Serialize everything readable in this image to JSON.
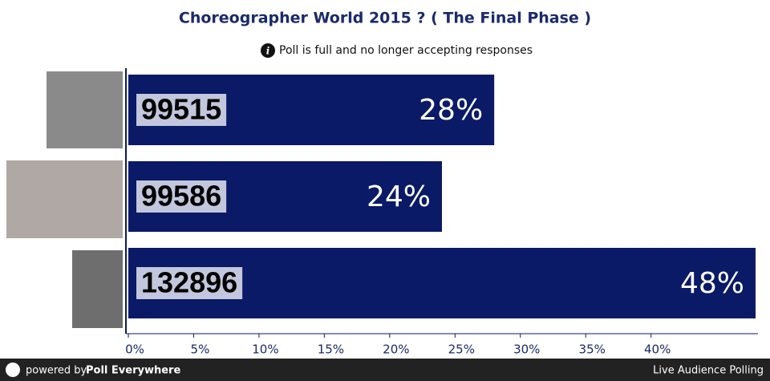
{
  "chart_data": {
    "type": "bar",
    "orientation": "horizontal",
    "title": "Choreographer World 2015 ? ( The Final Phase )",
    "subtitle": "Poll is full and no longer accepting responses",
    "categories": [
      "99515",
      "99586",
      "132896"
    ],
    "values": [
      28,
      24,
      48
    ],
    "value_labels": [
      "28%",
      "24%",
      "48%"
    ],
    "color": "#0a1a66",
    "xlim": [
      0,
      48
    ],
    "xticks": [
      {
        "value": 0,
        "label": "0%"
      },
      {
        "value": 5,
        "label": "5%"
      },
      {
        "value": 10,
        "label": "10%"
      },
      {
        "value": 15,
        "label": "15%"
      },
      {
        "value": 20,
        "label": "20%"
      },
      {
        "value": 25,
        "label": "25%"
      },
      {
        "value": 30,
        "label": "30%"
      },
      {
        "value": 35,
        "label": "35%"
      },
      {
        "value": 40,
        "label": "40%"
      }
    ]
  },
  "footer": {
    "prefix": "powered by",
    "brand": "Poll Everywhere",
    "right": "Live Audience Polling"
  }
}
